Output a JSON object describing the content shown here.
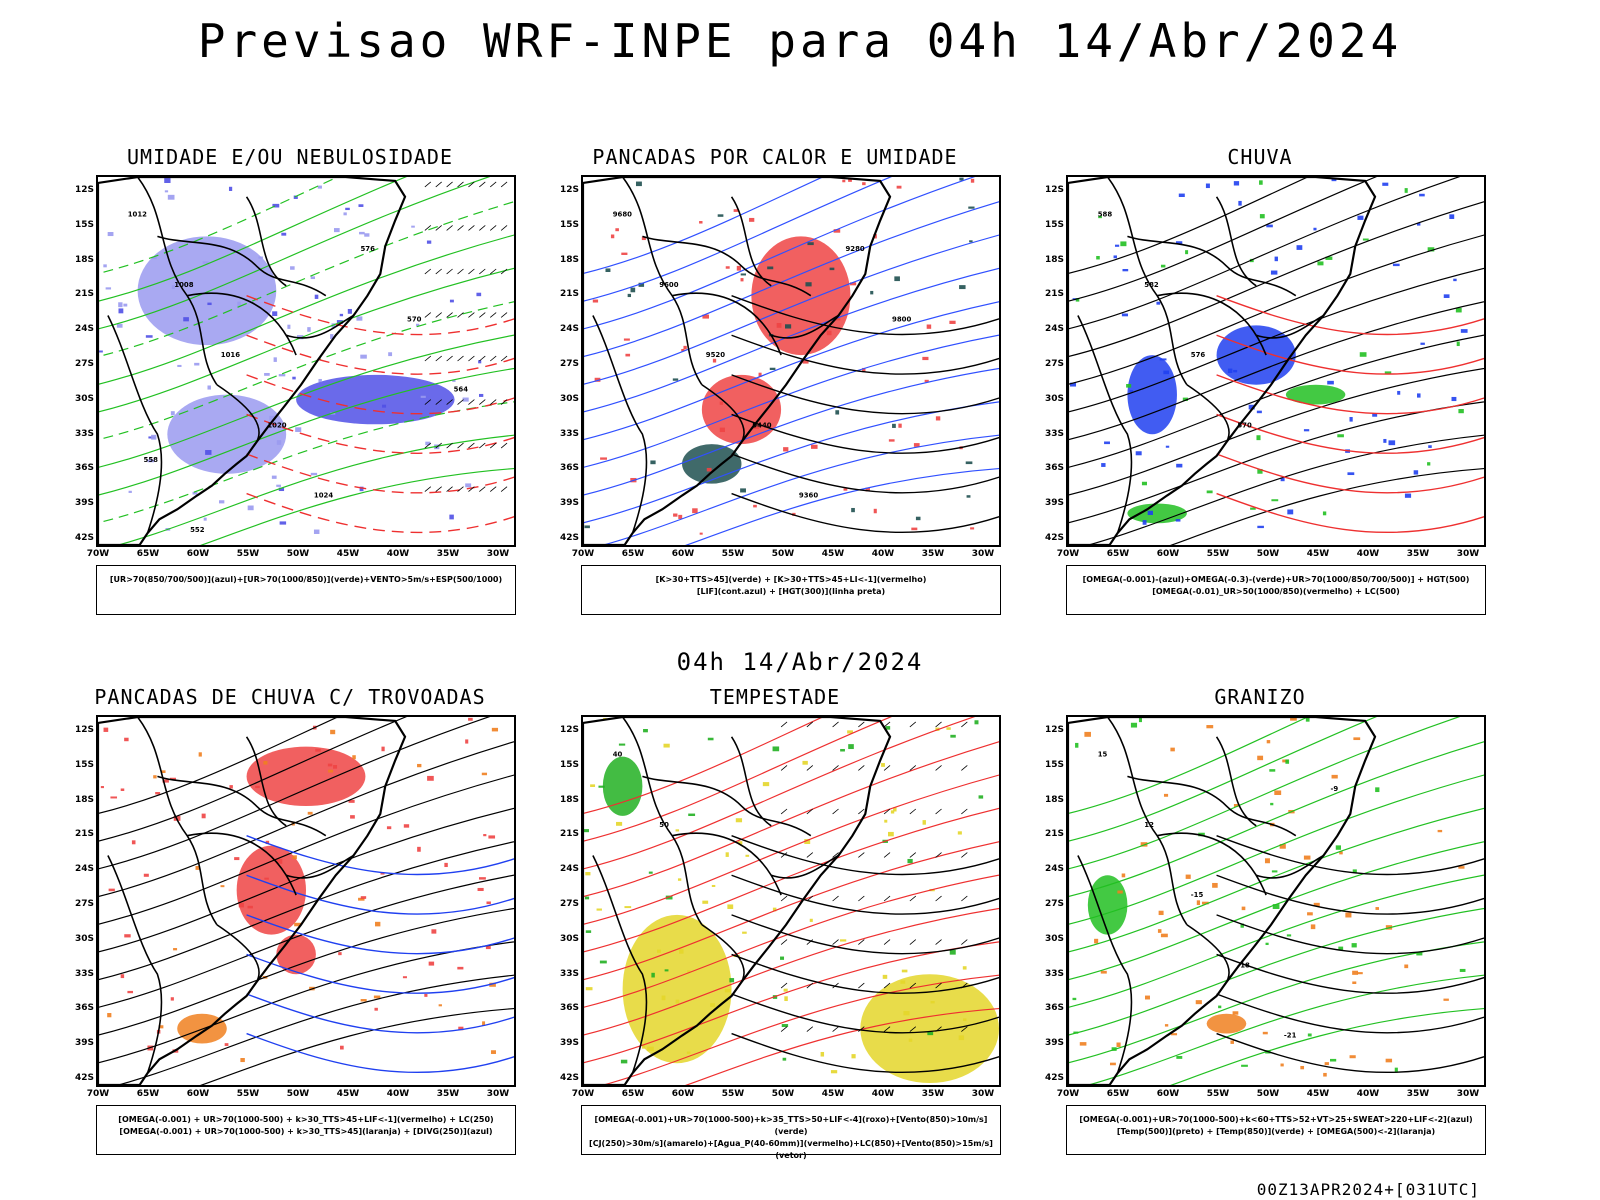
{
  "title": "Previsao WRF-INPE  para 04h 14/Abr/2024",
  "mid_title": "04h 14/Abr/2024",
  "footer": "00Z13APR2024+[031UTC]",
  "lat_labels": [
    "12S",
    "15S",
    "18S",
    "21S",
    "24S",
    "27S",
    "30S",
    "33S",
    "36S",
    "39S",
    "42S"
  ],
  "lon_labels": [
    "70W",
    "65W",
    "60W",
    "55W",
    "50W",
    "45W",
    "40W",
    "35W",
    "30W"
  ],
  "panels": [
    {
      "id": "umidade",
      "title": "UMIDADE E/OU NEBULOSIDADE",
      "legend": [
        "[UR>70(850/700/500)](azul)+[UR>70(1000/850)](verde)+VENTO>5m/s+ESP(500/1000)"
      ],
      "contour_labels": [
        "1012",
        "1008",
        "1016",
        "1020",
        "1024",
        "576",
        "570",
        "564",
        "558",
        "552"
      ],
      "colors": {
        "fill": "#9a9af0",
        "fill2": "#5050e6",
        "contour": "#22c022",
        "dash": "#ee3030"
      }
    },
    {
      "id": "pancadas-calor",
      "title": "PANCADAS POR CALOR E UMIDADE",
      "legend": [
        "[K>30+TTS>45](verde) + [K>30+TTS>45+LI<-1](vermelho)",
        "[LIF](cont.azul) + [HGT(300)](linha preta)"
      ],
      "contour_labels": [
        "9680",
        "9600",
        "9520",
        "9440",
        "9360",
        "9280",
        "9800"
      ],
      "colors": {
        "fill": "#ee4444",
        "fill2": "#1f5050",
        "contour": "#3050ff",
        "dash": "#000000"
      }
    },
    {
      "id": "chuva",
      "title": "CHUVA",
      "legend": [
        "[OMEGA(-0.001)-(azul)+OMEGA(-0.3)-(verde)+UR>70(1000/850/700/500)] + HGT(500)",
        "[OMEGA(-0.01)_UR>50(1000/850)(vermelho) + LC(500)"
      ],
      "contour_labels": [
        "588",
        "582",
        "576",
        "570"
      ],
      "colors": {
        "fill": "#2040f0",
        "fill2": "#22c022",
        "contour": "#000000",
        "dash": "#ee3030"
      }
    },
    {
      "id": "pancadas-trovoadas",
      "title": "PANCADAS DE CHUVA C/ TROVOADAS",
      "legend": [
        "[OMEGA(-0.001) + UR>70(1000-500) + k>30_TTS>45+LIF<-1](vermelho) + LC(250)",
        "[OMEGA(-0.001) + UR>70(1000-500) + k>30_TTS>45](laranja) + [DIVG(250)](azul)"
      ],
      "contour_labels": [],
      "colors": {
        "fill": "#ee4444",
        "fill2": "#f08020",
        "contour": "#000000",
        "dash": "#2040f0"
      }
    },
    {
      "id": "tempestade",
      "title": "TEMPESTADE",
      "legend": [
        "[OMEGA(-0.001)+UR>70(1000-500)+k>35_TTS>50+LIF<-4](roxo)+[Vento(850)>10m/s](verde)",
        "[CJ(250)>30m/s](amarelo)+[Agua_P(40-60mm)](vermelho)+LC(850)+[Vento(850)>15m/s](vetor)"
      ],
      "contour_labels": [
        "40",
        "50"
      ],
      "colors": {
        "fill": "#e4d62a",
        "fill2": "#22b022",
        "contour": "#ee3030",
        "dash": "#000000"
      }
    },
    {
      "id": "granizo",
      "title": "GRANIZO",
      "legend": [
        "[OMEGA(-0.001)+UR>70(1000-500)+k<60+TTS>52+VT>25+SWEAT>220+LIF<-2](azul)",
        "[Temp(500)](preto) + [Temp(850)](verde) + [OMEGA(500)<-2](laranja)"
      ],
      "contour_labels": [
        "15",
        "12",
        "-15",
        "-18",
        "-21",
        "-9"
      ],
      "colors": {
        "fill": "#f08020",
        "fill2": "#22c022",
        "contour": "#22c022",
        "dash": "#000000"
      }
    }
  ]
}
